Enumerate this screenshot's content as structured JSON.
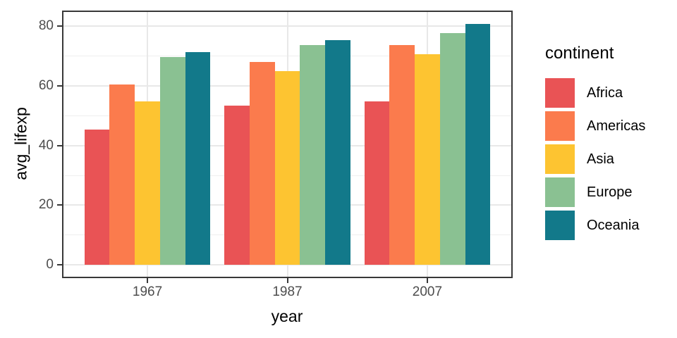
{
  "chart_data": {
    "type": "bar",
    "grouped": true,
    "title": "",
    "xlabel": "year",
    "ylabel": "avg_lifexp",
    "legend_title": "continent",
    "legend_position": "right",
    "categories": [
      "1967",
      "1987",
      "2007"
    ],
    "series": [
      {
        "name": "Africa",
        "color": "#E95355",
        "values": [
          45.3,
          53.3,
          54.8
        ]
      },
      {
        "name": "Americas",
        "color": "#FB7B4D",
        "values": [
          60.4,
          68.1,
          73.6
        ]
      },
      {
        "name": "Asia",
        "color": "#FDC431",
        "values": [
          54.7,
          64.9,
          70.7
        ]
      },
      {
        "name": "Europe",
        "color": "#8AC192",
        "values": [
          69.7,
          73.6,
          77.6
        ]
      },
      {
        "name": "Oceania",
        "color": "#12798A",
        "values": [
          71.3,
          75.3,
          80.7
        ]
      }
    ],
    "y_tick_labels": [
      "0",
      "20",
      "40",
      "60",
      "80"
    ],
    "y_tick_values": [
      0,
      20,
      40,
      60,
      80
    ],
    "y_minor_values": [
      10,
      30,
      50,
      70
    ],
    "ylim": [
      -4.0,
      84.8
    ],
    "grid": "on",
    "panel_border": "on"
  },
  "style_colors": {
    "grid_major": "#E8E8E8",
    "panel_border": "#383838",
    "tick_label": "#4D4D4D",
    "title_text": "#000000",
    "background": "#FFFFFF"
  }
}
